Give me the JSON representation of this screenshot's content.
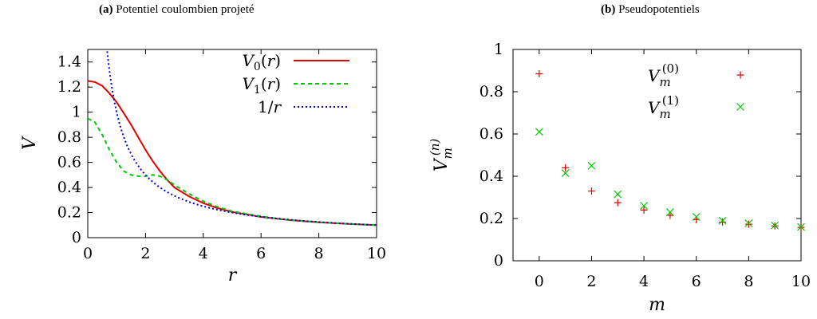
{
  "chart_data": [
    {
      "type": "line",
      "caption_tag": "(a)",
      "title": "Potentiel coulombien projeté",
      "xlabel": "r",
      "ylabel": "V",
      "xlim": [
        0,
        10
      ],
      "ylim": [
        0,
        1.5
      ],
      "xticks": [
        "0",
        "2",
        "4",
        "6",
        "8",
        "10"
      ],
      "yticks": [
        "0",
        "0.2",
        "0.4",
        "0.6",
        "0.8",
        "1",
        "1.2",
        "1.4"
      ],
      "legend_position": "top-right",
      "series": [
        {
          "name": "V0(r)",
          "legend_main": "V",
          "legend_sub": "0",
          "legend_arg": "(r)",
          "color": "#e00000",
          "dash": "solid",
          "x": [
            0,
            0.25,
            0.5,
            0.75,
            1,
            1.25,
            1.5,
            1.75,
            2,
            2.25,
            2.5,
            2.75,
            3,
            3.5,
            4,
            4.5,
            5,
            6,
            7,
            8,
            9,
            10
          ],
          "y": [
            1.25,
            1.24,
            1.21,
            1.15,
            1.08,
            0.99,
            0.9,
            0.8,
            0.7,
            0.61,
            0.53,
            0.46,
            0.4,
            0.33,
            0.275,
            0.235,
            0.205,
            0.165,
            0.14,
            0.122,
            0.11,
            0.1
          ]
        },
        {
          "name": "V1(r)",
          "legend_main": "V",
          "legend_sub": "1",
          "legend_arg": "(r)",
          "color": "#00c800",
          "dash": "dashed",
          "x": [
            0,
            0.25,
            0.5,
            0.75,
            1,
            1.25,
            1.5,
            1.75,
            2,
            2.25,
            2.5,
            2.75,
            3,
            3.5,
            4,
            4.5,
            5,
            6,
            7,
            8,
            9,
            10
          ],
          "y": [
            0.95,
            0.92,
            0.82,
            0.7,
            0.6,
            0.53,
            0.5,
            0.49,
            0.49,
            0.5,
            0.49,
            0.46,
            0.42,
            0.35,
            0.29,
            0.245,
            0.21,
            0.17,
            0.14,
            0.123,
            0.11,
            0.1
          ]
        },
        {
          "name": "1/r",
          "legend_main": "1/",
          "legend_sub": "",
          "legend_arg": "r",
          "color": "#0000e0",
          "dash": "dotted",
          "function": "1/x",
          "x_from": 0.4,
          "x_to": 10
        }
      ]
    },
    {
      "type": "scatter",
      "caption_tag": "(b)",
      "title": "Pseudopotentiels",
      "xlabel": "m",
      "ylabel_main": "V",
      "ylabel_sub": "m",
      "ylabel_sup": "(n)",
      "xlim": [
        -1,
        10
      ],
      "ylim": [
        0,
        1
      ],
      "xticks": [
        "0",
        "2",
        "4",
        "6",
        "8",
        "10"
      ],
      "yticks": [
        "0",
        "0.2",
        "0.4",
        "0.6",
        "0.8",
        "1"
      ],
      "legend_position": "top-right",
      "series": [
        {
          "name": "Vm(0)",
          "legend_main": "V",
          "legend_sub": "m",
          "legend_sup": "(0)",
          "marker": "plus",
          "color": "#e00000",
          "x": [
            0,
            1,
            2,
            3,
            4,
            5,
            6,
            7,
            8,
            9,
            10
          ],
          "y": [
            0.885,
            0.44,
            0.33,
            0.275,
            0.24,
            0.215,
            0.195,
            0.183,
            0.173,
            0.165,
            0.158
          ]
        },
        {
          "name": "Vm(1)",
          "legend_main": "V",
          "legend_sub": "m",
          "legend_sup": "(1)",
          "marker": "x",
          "color": "#00c800",
          "x": [
            0,
            1,
            2,
            3,
            4,
            5,
            6,
            7,
            8,
            9,
            10
          ],
          "y": [
            0.61,
            0.415,
            0.45,
            0.315,
            0.26,
            0.23,
            0.208,
            0.19,
            0.177,
            0.167,
            0.16
          ]
        }
      ]
    }
  ]
}
